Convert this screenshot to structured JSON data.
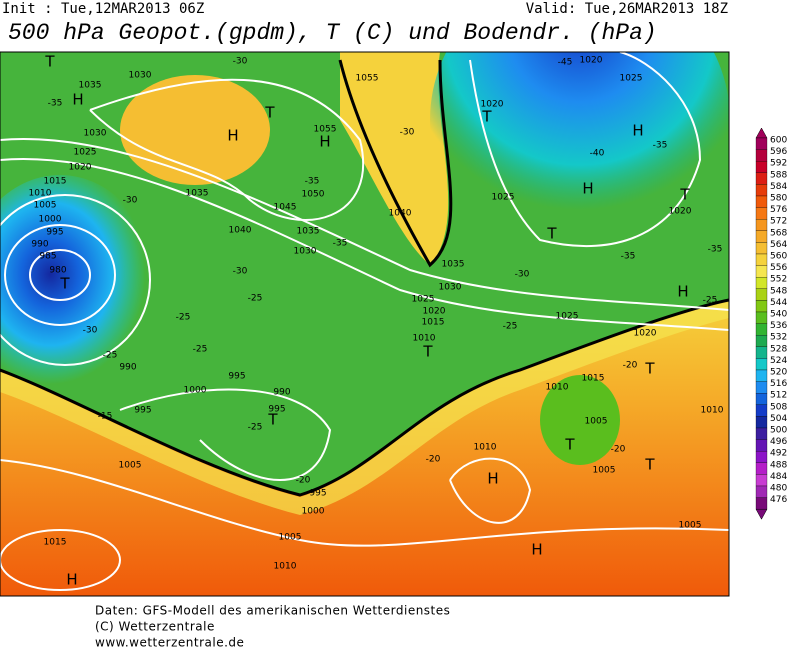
{
  "header": {
    "init": "Init : Tue,12MAR2013 06Z",
    "valid": "Valid: Tue,26MAR2013 18Z",
    "title": "500 hPa Geopot.(gpdm), T (C) und Bodendr. (hPa)"
  },
  "colorbar": {
    "values": [
      600,
      596,
      592,
      588,
      584,
      580,
      576,
      572,
      568,
      564,
      560,
      556,
      552,
      548,
      544,
      540,
      536,
      532,
      528,
      524,
      520,
      516,
      512,
      508,
      504,
      500,
      496,
      492,
      488,
      484,
      480,
      476
    ],
    "colors": [
      "#a0005a",
      "#b4003c",
      "#c80028",
      "#dc1e14",
      "#e63c0a",
      "#f05a0a",
      "#f57814",
      "#f5961e",
      "#f5aa28",
      "#f5be32",
      "#f5d23c",
      "#f5e650",
      "#d2e628",
      "#aad214",
      "#82c814",
      "#5abe1e",
      "#32b432",
      "#1eaa50",
      "#14b48c",
      "#14c8c8",
      "#1eb4f0",
      "#1e8cf0",
      "#1464dc",
      "#143cc8",
      "#1428a0",
      "#3c1ea0",
      "#6414b4",
      "#8c14c8",
      "#b41ec8",
      "#c83cd2",
      "#a028b4",
      "#780a78"
    ]
  },
  "map": {
    "labels": [
      "1030",
      "1035",
      "H",
      "-35",
      "T",
      "1030",
      "1025",
      "1020",
      "1015",
      "1010",
      "1005",
      "1000",
      "995",
      "990",
      "985",
      "980",
      "T",
      "-30",
      "-25",
      "990",
      "-15",
      "995",
      "1000",
      "995",
      "990",
      "995",
      "T",
      "-25",
      "-20",
      "995",
      "1000",
      "1005",
      "1010",
      "1005",
      "1015",
      "H",
      "H",
      "T",
      "1035",
      "-30",
      "1040",
      "1045",
      "1050",
      "-35",
      "1055",
      "H",
      "1055",
      "-30",
      "1040",
      "1035",
      "1030",
      "-35",
      "-30",
      "-25",
      "-25",
      "-25",
      "1035",
      "1030",
      "1025",
      "1020",
      "1015",
      "1010",
      "T",
      "-30",
      "-25",
      "1025",
      "1020",
      "T",
      "1025",
      "T",
      "H",
      "-40",
      "-45",
      "1020",
      "1025",
      "H",
      "-35",
      "T",
      "1020",
      "-35",
      "-35",
      "H",
      "-25",
      "1020",
      "-20",
      "1015",
      "T",
      "1010",
      "1005",
      "T",
      "-20",
      "1005",
      "T",
      "1010",
      "-20",
      "H",
      "1005",
      "H",
      "1010",
      "-30"
    ]
  },
  "footer": [
    "Daten: GFS-Modell des amerikanischen Wetterdienstes",
    "(C) Wetterzentrale",
    "www.wetterzentrale.de"
  ]
}
